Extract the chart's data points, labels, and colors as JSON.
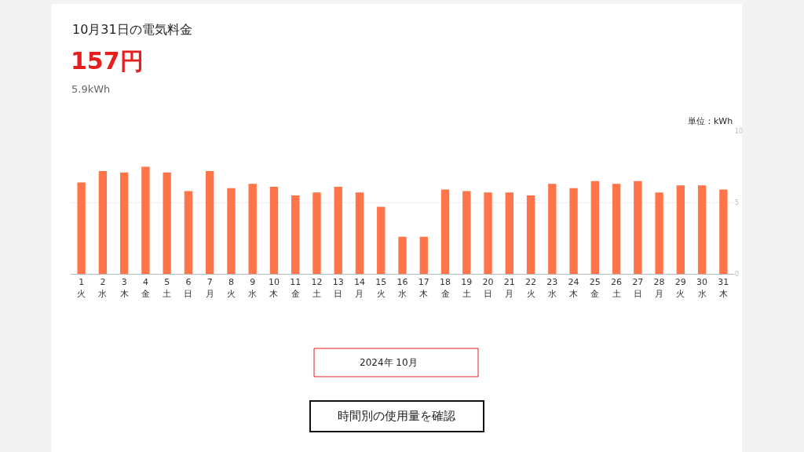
{
  "chart_data": {
    "type": "bar",
    "title": "10月31日の電気料金",
    "subtitle": "157円",
    "ylabel": "単位：kWh",
    "categories": [
      "1\n火",
      "2\n水",
      "3\n木",
      "4\n金",
      "5\n土",
      "6\n日",
      "7\n月",
      "8\n火",
      "9\n水",
      "10\n木",
      "11\n金",
      "12\n土",
      "13\n日",
      "14\n月",
      "15\n火",
      "16\n水",
      "17\n木",
      "18\n金",
      "19\n土",
      "20\n日",
      "21\n月",
      "22\n火",
      "23\n水",
      "24\n木",
      "25\n金",
      "26\n土",
      "27\n日",
      "28\n月",
      "29\n火",
      "30\n水",
      "31\n木"
    ],
    "values": [
      6.4,
      7.2,
      7.1,
      7.5,
      7.1,
      5.8,
      7.2,
      6.0,
      6.3,
      6.1,
      5.5,
      5.7,
      6.1,
      5.7,
      4.7,
      2.6,
      2.6,
      5.9,
      5.8,
      5.7,
      5.7,
      5.5,
      6.3,
      6.0,
      6.5,
      6.3,
      6.5,
      5.7,
      6.2,
      6.2,
      5.9
    ],
    "color": "#ff7448",
    "ylim": [
      0,
      10
    ],
    "yticks": [
      0,
      5,
      10
    ],
    "grid": "y",
    "annotations": [
      "5.9kWh",
      "2024年 10月",
      "時間別の使用量を確認"
    ]
  }
}
